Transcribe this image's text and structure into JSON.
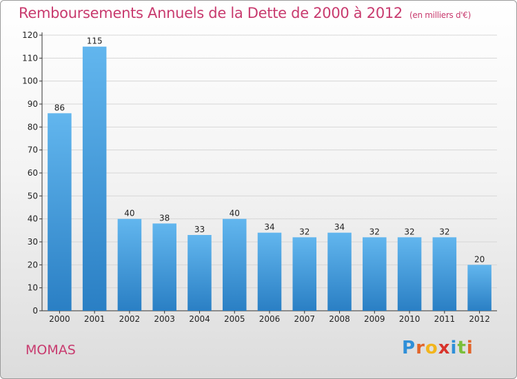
{
  "chart_data": {
    "type": "bar",
    "title": "Remboursements Annuels de la Dette de 2000 à 2012",
    "subtitle": "(en milliers d'€)",
    "categories": [
      "2000",
      "2001",
      "2002",
      "2003",
      "2004",
      "2005",
      "2006",
      "2007",
      "2008",
      "2009",
      "2010",
      "2011",
      "2012"
    ],
    "values": [
      86,
      115,
      40,
      38,
      33,
      40,
      34,
      32,
      34,
      32,
      32,
      32,
      20
    ],
    "ylim": [
      0,
      120
    ],
    "yticks": [
      0,
      10,
      20,
      30,
      40,
      50,
      60,
      70,
      80,
      90,
      100,
      110,
      120
    ],
    "grid": true,
    "xlabel": "",
    "ylabel": ""
  },
  "commune": "MOMAS",
  "logo": {
    "letters": [
      "P",
      "r",
      "o",
      "x",
      "i",
      "t",
      "i"
    ],
    "colors": [
      "#2f8fd8",
      "#e2652a",
      "#f2b51d",
      "#d8342c",
      "#2f8fd8",
      "#7bbf3a",
      "#e2652a"
    ]
  },
  "colors": {
    "title": "#c83a6e",
    "bar_top": "#62b6ee",
    "bar_bottom": "#2a7fc4",
    "grid": "#d6d6d6"
  }
}
